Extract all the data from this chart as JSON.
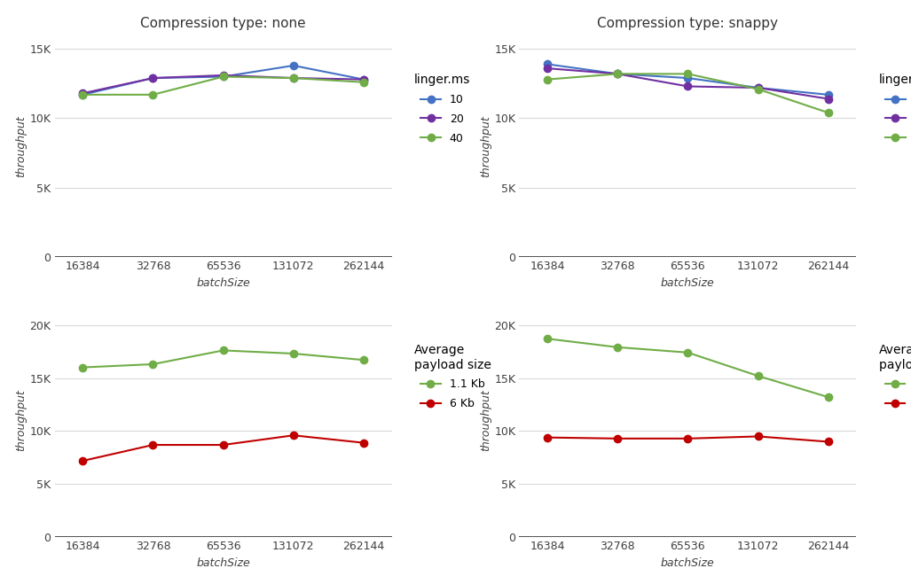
{
  "batch_sizes": [
    16384,
    32768,
    65536,
    131072,
    262144
  ],
  "top_left": {
    "title": "Compression type: none",
    "linger_10": [
      11700,
      12900,
      13000,
      13800,
      12800
    ],
    "linger_20": [
      11800,
      12900,
      13100,
      12900,
      12800
    ],
    "linger_40": [
      11700,
      11700,
      13000,
      12900,
      12600
    ],
    "colors": {
      "10": "#4472c4",
      "20": "#7030a0",
      "40": "#70ad47"
    },
    "ylim": [
      0,
      16000
    ],
    "yticks": [
      0,
      5000,
      10000,
      15000
    ],
    "ytick_labels": [
      "0",
      "5K",
      "10K",
      "15K"
    ]
  },
  "top_right": {
    "title": "Compression type: snappy",
    "linger_10": [
      13900,
      13200,
      12900,
      12200,
      11700
    ],
    "linger_20": [
      13600,
      13200,
      12300,
      12200,
      11400
    ],
    "linger_40": [
      12800,
      13200,
      13200,
      12100,
      10400
    ],
    "colors": {
      "10": "#4472c4",
      "20": "#7030a0",
      "40": "#70ad47"
    },
    "ylim": [
      0,
      16000
    ],
    "yticks": [
      0,
      5000,
      10000,
      15000
    ],
    "ytick_labels": [
      "0",
      "5K",
      "10K",
      "15K"
    ]
  },
  "bottom_left": {
    "payload_11kb": [
      16000,
      16300,
      17600,
      17300,
      16700
    ],
    "payload_6kb": [
      7200,
      8700,
      8700,
      9600,
      8900
    ],
    "colors": {
      "11kb": "#70ad47",
      "6kb": "#c00000"
    },
    "ylim": [
      0,
      22000
    ],
    "yticks": [
      0,
      5000,
      10000,
      15000,
      20000
    ],
    "ytick_labels": [
      "0",
      "5K",
      "10K",
      "15K",
      "20K"
    ]
  },
  "bottom_right": {
    "payload_11kb": [
      18700,
      17900,
      17400,
      15200,
      13200
    ],
    "payload_6kb": [
      9400,
      9300,
      9300,
      9500,
      9000
    ],
    "colors": {
      "11kb": "#70ad47",
      "6kb": "#c00000"
    },
    "ylim": [
      0,
      22000
    ],
    "yticks": [
      0,
      5000,
      10000,
      15000,
      20000
    ],
    "ytick_labels": [
      "0",
      "5K",
      "10K",
      "15K",
      "20K"
    ]
  },
  "xlabel": "batchSize",
  "ylabel": "throughput",
  "legend_linger_title": "linger.ms",
  "legend_payload_title": "Average\npayload size",
  "bg_color": "#ffffff",
  "grid_color": "#d9d9d9",
  "marker_size": 6,
  "linewidth": 1.5,
  "title_fontsize": 11,
  "label_fontsize": 9,
  "tick_fontsize": 9
}
